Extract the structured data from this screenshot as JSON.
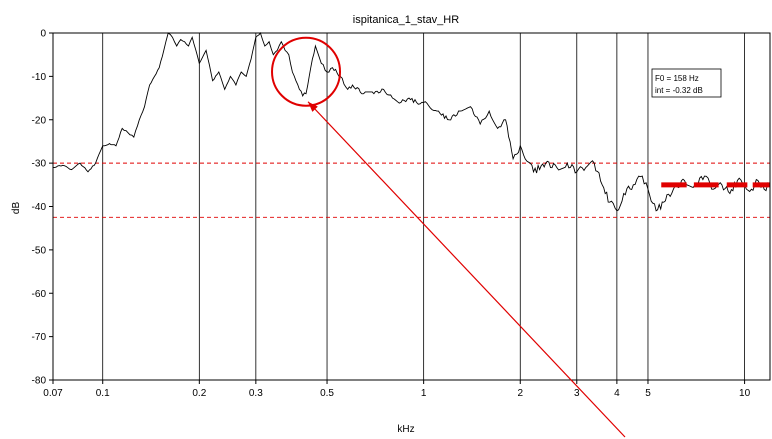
{
  "chart_data": {
    "type": "line",
    "title": "ispitanica_1_stav_HR",
    "xlabel": "kHz",
    "ylabel": "dB",
    "x_scale": "log",
    "xlim": [
      0.07,
      12
    ],
    "ylim": [
      -80,
      0
    ],
    "x_ticks": [
      0.07,
      0.1,
      0.2,
      0.3,
      0.5,
      1,
      2,
      3,
      4,
      5,
      10
    ],
    "x_tick_labels": [
      "0.07",
      "0.1",
      "0.2",
      "0.3",
      "0.5",
      "1",
      "2",
      "3",
      "4",
      "5",
      "10"
    ],
    "y_ticks": [
      0,
      -10,
      -20,
      -30,
      -40,
      -50,
      -60,
      -70,
      -80
    ],
    "y_tick_labels": [
      "0",
      "-10",
      "-20",
      "-30",
      "-40",
      "-50",
      "-60",
      "-70",
      "-80"
    ],
    "grid": "vertical lines at x ticks",
    "reference_lines_db": [
      -30,
      -42.5
    ],
    "reference_line_color": "#e00000",
    "annotation": {
      "lines": [
        "F0 = 158 Hz",
        "int = -0.32 dB"
      ]
    },
    "highlight_circle": {
      "x": 0.43,
      "y": -14
    },
    "arrow_target": {
      "x": 0.43,
      "y": -14
    },
    "bold_segments_db": -35,
    "bold_segments_khz": [
      [
        5.5,
        6.6
      ],
      [
        6.95,
        8.3
      ],
      [
        8.8,
        10.2
      ],
      [
        10.6,
        12
      ]
    ],
    "accent_color": "#e00000",
    "series": [
      {
        "color": "#000000",
        "x": [
          0.07,
          0.075,
          0.08,
          0.085,
          0.09,
          0.095,
          0.1,
          0.105,
          0.11,
          0.115,
          0.12,
          0.125,
          0.13,
          0.135,
          0.14,
          0.145,
          0.15,
          0.155,
          0.16,
          0.165,
          0.17,
          0.175,
          0.18,
          0.185,
          0.19,
          0.2,
          0.21,
          0.22,
          0.23,
          0.24,
          0.25,
          0.26,
          0.27,
          0.28,
          0.29,
          0.3,
          0.31,
          0.32,
          0.33,
          0.34,
          0.35,
          0.36,
          0.37,
          0.38,
          0.39,
          0.4,
          0.41,
          0.42,
          0.43,
          0.44,
          0.45,
          0.46,
          0.47,
          0.48,
          0.5,
          0.52,
          0.55,
          0.58,
          0.6,
          0.65,
          0.7,
          0.75,
          0.8,
          0.85,
          0.9,
          0.95,
          1.0,
          1.1,
          1.2,
          1.3,
          1.4,
          1.5,
          1.6,
          1.7,
          1.8,
          1.9,
          2.0,
          2.2,
          2.4,
          2.6,
          2.8,
          3.0,
          3.2,
          3.4,
          3.6,
          3.8,
          4.0,
          4.2,
          4.5,
          4.8,
          5.0,
          5.3,
          5.6,
          6.0,
          6.5,
          7.0,
          7.5,
          8.0,
          8.5,
          9.0,
          9.5,
          10.0,
          10.5,
          11.0,
          11.5,
          12.0
        ],
        "y": [
          -31,
          -30.5,
          -31.5,
          -30,
          -32,
          -30,
          -26,
          -25.5,
          -26,
          -22,
          -23,
          -24,
          -20,
          -17,
          -12,
          -10,
          -8,
          -4,
          0,
          -1,
          -3,
          -1.5,
          -2,
          -3,
          -1,
          -7,
          -4,
          -11,
          -9,
          -13,
          -10,
          -12,
          -9,
          -10,
          -6,
          -1,
          0,
          -3,
          -2,
          -5,
          -4,
          -2,
          -4,
          -5,
          -9,
          -11,
          -13,
          -14.5,
          -14,
          -10,
          -6,
          -3,
          -5,
          -7,
          -9,
          -8,
          -10,
          -13,
          -12,
          -14,
          -14,
          -13,
          -15,
          -16,
          -15,
          -16,
          -16,
          -18,
          -20,
          -18,
          -17,
          -21,
          -18,
          -22,
          -20,
          -29,
          -26,
          -32,
          -30,
          -31,
          -30,
          -32,
          -31,
          -30,
          -35,
          -39,
          -41,
          -37,
          -35,
          -33,
          -36,
          -41,
          -39,
          -36,
          -34,
          -35,
          -33,
          -36,
          -35,
          -37,
          -34,
          -35,
          -36,
          -34,
          -36,
          -35
        ]
      }
    ]
  }
}
